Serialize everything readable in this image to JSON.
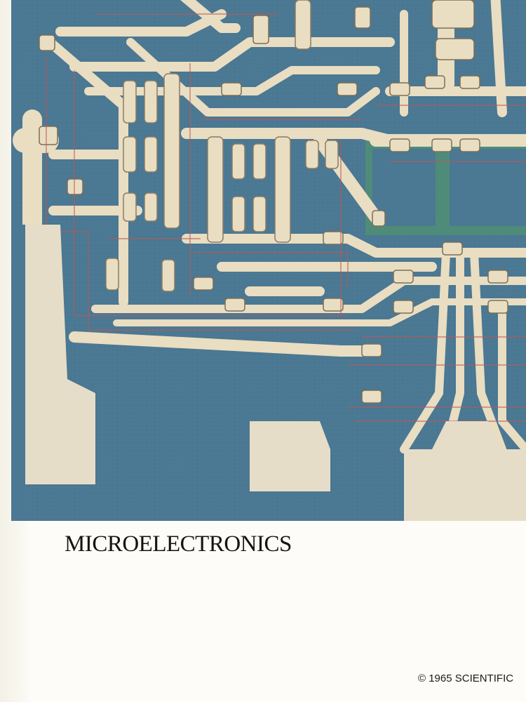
{
  "article": {
    "title": "MICROELECTRONICS",
    "copyright": "© 1965 SCIENTIFIC"
  },
  "illustration": {
    "subject": "integrated-circuit-photomicrograph",
    "colors": {
      "substrate": "#4b7892",
      "substrate_dark": "#3d6a84",
      "metal": "#e9ddc2",
      "trace_line": "#b85a5a",
      "diffusion": "#4f8f74"
    }
  }
}
